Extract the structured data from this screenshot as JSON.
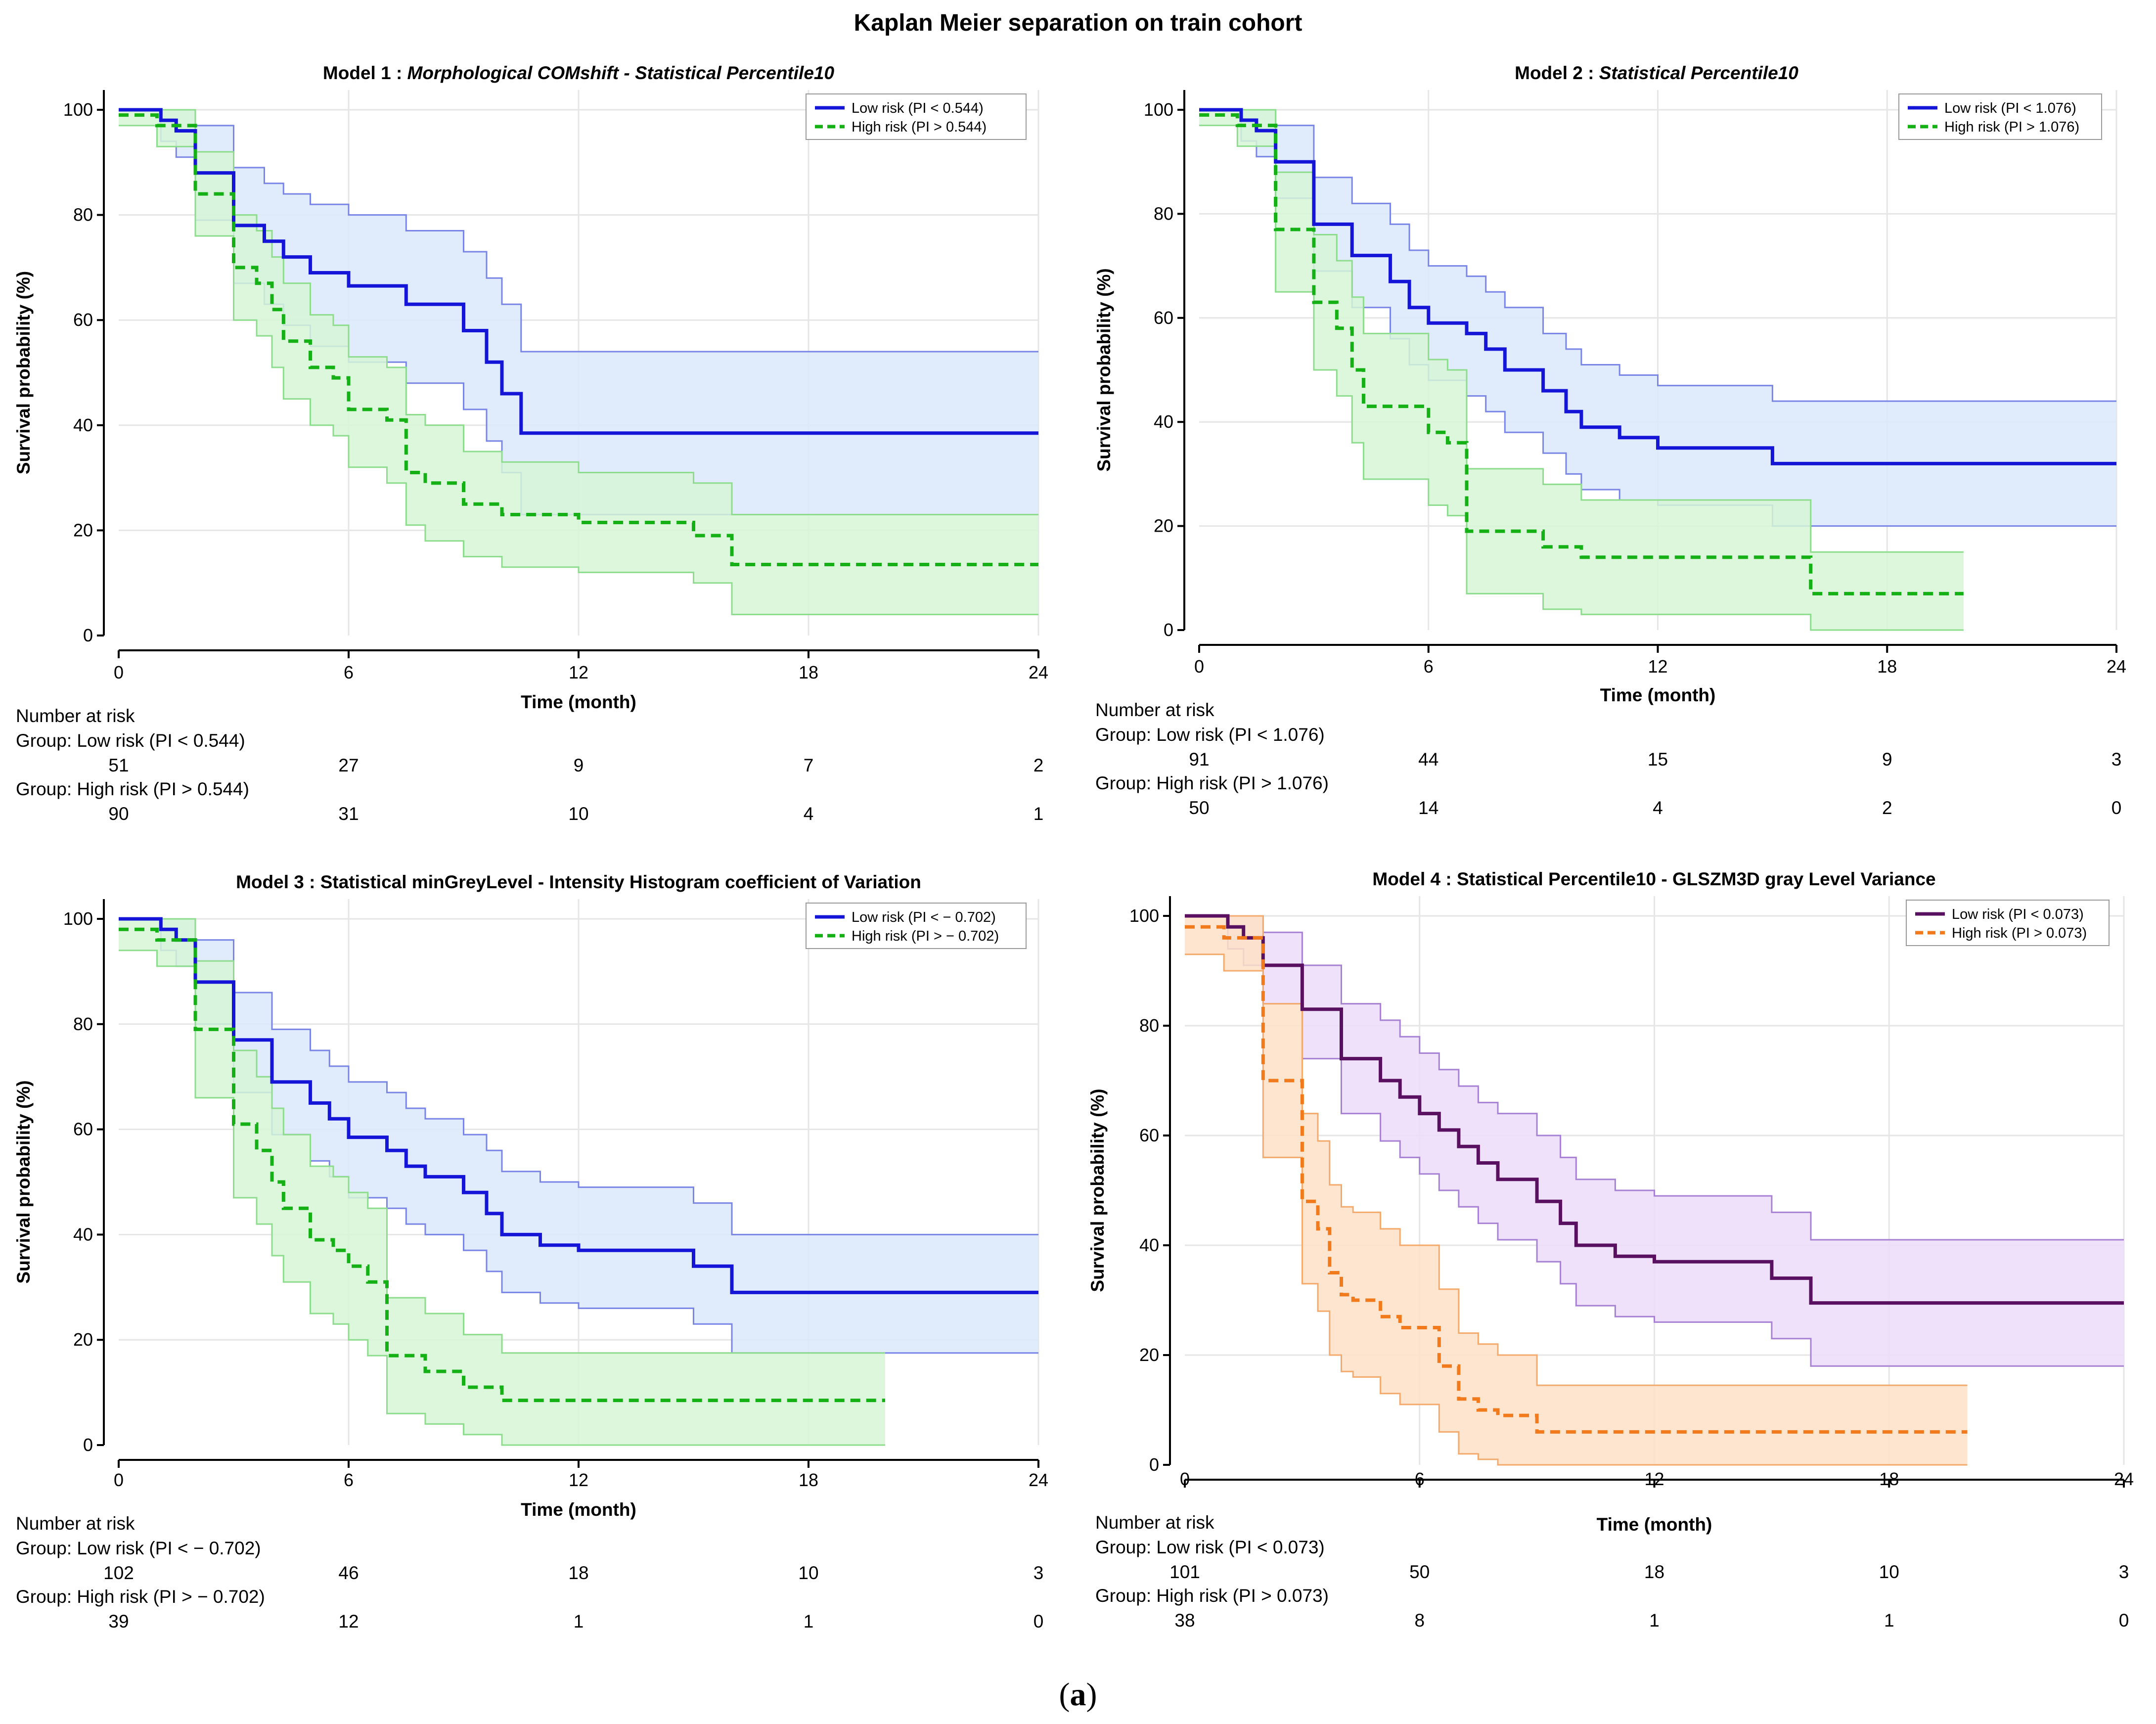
{
  "figure": {
    "title": "Kaplan Meier separation on train cohort",
    "caption_open": "(",
    "caption_letter": "a",
    "caption_close": ")"
  },
  "colors": {
    "blue": "#1515d8",
    "blue_band": "#dbe8fb",
    "blue_band_edge": "#7a86e6",
    "green": "#15b015",
    "green_band": "#d6f6d6",
    "green_band_edge": "#8edc8e",
    "purple": "#5a1060",
    "purple_band": "#ecdcf8",
    "purple_band_edge": "#a781d4",
    "orange": "#f07a1c",
    "orange_band": "#fde0c7",
    "orange_band_edge": "#f4aa6c",
    "axis": "#000000",
    "grid": "#e6e6e6"
  },
  "chart_data": [
    {
      "type": "line",
      "subtype": "kaplan-meier",
      "title_prefix": "Model 1 : ",
      "title_main": "Morphological COMshift - Statistical Percentile10",
      "title_italic": true,
      "xlabel": "Time (month)",
      "ylabel": "Survival probability (%)",
      "xlim": [
        0,
        24
      ],
      "ylim": [
        0,
        100
      ],
      "xticks": [
        0,
        6,
        12,
        18,
        24
      ],
      "yticks": [
        0,
        20,
        40,
        60,
        80,
        100
      ],
      "grid": true,
      "legend_position": "top-right",
      "series": [
        {
          "name": "Low risk (PI < 0.544)",
          "color": "blue",
          "dash": false,
          "x": [
            0,
            1.1,
            1.5,
            2,
            3,
            3.8,
            4.3,
            5,
            6,
            7.5,
            9,
            9.6,
            10,
            10.5,
            24
          ],
          "y": [
            100,
            98,
            96,
            88,
            78,
            75,
            72,
            69,
            66.5,
            63,
            58,
            52,
            46,
            38.5,
            38.5
          ],
          "ci_upper": [
            100,
            100,
            100,
            97,
            89,
            86,
            84,
            82,
            80,
            77,
            73,
            68,
            63,
            54,
            54
          ],
          "ci_lower": [
            100,
            94,
            91,
            79,
            67,
            63,
            59,
            55,
            52,
            48,
            43,
            37,
            31,
            23,
            23
          ]
        },
        {
          "name": "High risk (PI > 0.544)",
          "color": "green",
          "dash": true,
          "x": [
            0,
            1,
            2,
            3,
            3.6,
            4,
            4.3,
            5,
            5.6,
            6,
            7,
            7.5,
            8,
            9,
            10,
            12,
            15,
            16,
            24
          ],
          "y": [
            99,
            97,
            84,
            70,
            67,
            62,
            56,
            51,
            49,
            43,
            41,
            31,
            29,
            25,
            23,
            21.5,
            19,
            13.5,
            13.5
          ],
          "ci_upper": [
            100,
            100,
            92,
            80,
            77,
            72,
            67,
            61,
            59,
            53,
            51,
            42,
            40,
            35,
            33,
            31,
            29,
            23,
            23
          ],
          "ci_lower": [
            97,
            93,
            76,
            60,
            57,
            51,
            45,
            40,
            38,
            32,
            29,
            21,
            18,
            15,
            13,
            12,
            10,
            4,
            4
          ]
        }
      ],
      "risk_table": {
        "header": "Number at risk",
        "times": [
          0,
          6,
          12,
          18,
          24
        ],
        "groups": [
          {
            "label": "Group: Low risk (PI < 0.544)",
            "counts": [
              "51",
              "27",
              "9",
              "7",
              "2"
            ]
          },
          {
            "label": "Group: High risk (PI > 0.544)",
            "counts": [
              "90",
              "31",
              "10",
              "4",
              "1"
            ]
          }
        ]
      }
    },
    {
      "type": "line",
      "subtype": "kaplan-meier",
      "title_prefix": "Model 2 : ",
      "title_main": "Statistical Percentile10",
      "title_italic": true,
      "xlabel": "Time (month)",
      "ylabel": "Survival probability (%)",
      "xlim": [
        0,
        24
      ],
      "ylim": [
        0,
        100
      ],
      "xticks": [
        0,
        6,
        12,
        18,
        24
      ],
      "yticks": [
        0,
        20,
        40,
        60,
        80,
        100
      ],
      "grid": true,
      "legend_position": "top-right",
      "series": [
        {
          "name": "Low risk (PI < 1.076)",
          "color": "blue",
          "dash": false,
          "x": [
            0,
            1.1,
            1.5,
            2,
            3,
            4,
            5,
            5.5,
            6,
            7,
            7.5,
            8,
            9,
            9.6,
            10,
            11,
            12,
            15,
            24
          ],
          "y": [
            100,
            98,
            96,
            90,
            78,
            72,
            67,
            62,
            59,
            57,
            54,
            50,
            46,
            42,
            39,
            37,
            35,
            32,
            32
          ],
          "ci_upper": [
            100,
            100,
            100,
            97,
            87,
            82,
            78,
            73,
            70,
            68,
            65,
            62,
            57,
            54,
            51,
            49,
            47,
            44,
            44
          ],
          "ci_lower": [
            100,
            94,
            91,
            83,
            69,
            62,
            56,
            51,
            48,
            45,
            42,
            38,
            34,
            30,
            27,
            25,
            24,
            20,
            20
          ]
        },
        {
          "name": "High risk (PI > 1.076)",
          "color": "green",
          "dash": true,
          "x": [
            0,
            1,
            2,
            3,
            3.6,
            4,
            4.3,
            5,
            6,
            6.5,
            7,
            8,
            9,
            10,
            12,
            16,
            20
          ],
          "y": [
            99,
            97,
            77,
            63,
            58,
            50,
            43,
            43,
            38,
            36,
            19,
            19,
            16,
            14,
            14,
            7,
            7
          ],
          "ci_upper": [
            100,
            100,
            88,
            76,
            71,
            64,
            57,
            57,
            52,
            50,
            31,
            31,
            28,
            25,
            25,
            15,
            15
          ],
          "ci_lower": [
            97,
            93,
            65,
            50,
            45,
            36,
            29,
            29,
            24,
            22,
            7,
            7,
            4,
            3,
            3,
            0,
            0
          ]
        }
      ],
      "risk_table": {
        "header": "Number at risk",
        "times": [
          0,
          6,
          12,
          18,
          24
        ],
        "groups": [
          {
            "label": "Group: Low risk (PI < 1.076)",
            "counts": [
              "91",
              "44",
              "15",
              "9",
              "3"
            ]
          },
          {
            "label": "Group: High risk (PI > 1.076)",
            "counts": [
              "50",
              "14",
              "4",
              "2",
              "0"
            ]
          }
        ]
      }
    },
    {
      "type": "line",
      "subtype": "kaplan-meier",
      "title_prefix": "Model 3 : ",
      "title_main": "Statistical minGreyLevel - Intensity Histogram coefficient of Variation",
      "title_italic": false,
      "xlabel": "Time (month)",
      "ylabel": "Survival probability (%)",
      "xlim": [
        0,
        24
      ],
      "ylim": [
        0,
        100
      ],
      "xticks": [
        0,
        6,
        12,
        18,
        24
      ],
      "yticks": [
        0,
        20,
        40,
        60,
        80,
        100
      ],
      "grid": true,
      "legend_position": "top-right",
      "series": [
        {
          "name": "Low risk (PI < − 0.702)",
          "color": "blue",
          "dash": false,
          "x": [
            0,
            1.1,
            1.5,
            2,
            3,
            4,
            5,
            5.5,
            6,
            7,
            7.5,
            8,
            9,
            9.6,
            10,
            11,
            12,
            15,
            16,
            24
          ],
          "y": [
            100,
            98,
            96,
            88,
            77,
            69,
            65,
            62,
            58.5,
            56,
            53,
            51,
            48,
            44,
            40,
            38,
            37,
            34,
            29,
            29
          ],
          "ci_upper": [
            100,
            100,
            100,
            96,
            86,
            79,
            75,
            72,
            69,
            67,
            64,
            62,
            59,
            56,
            52,
            50,
            49,
            46,
            40,
            40
          ],
          "ci_lower": [
            100,
            94,
            91,
            80,
            67,
            59,
            54,
            51,
            47,
            45,
            42,
            40,
            37,
            33,
            29,
            27,
            26,
            23,
            17.5,
            17.5
          ]
        },
        {
          "name": "High risk (PI > − 0.702)",
          "color": "green",
          "dash": true,
          "x": [
            0,
            1,
            2,
            3,
            3.6,
            4,
            4.3,
            5,
            5.6,
            6,
            6.5,
            7,
            8,
            9,
            10,
            20
          ],
          "y": [
            98,
            96,
            79,
            61,
            56,
            50,
            45,
            39,
            37,
            34,
            31,
            17,
            14,
            11,
            8.5,
            8.5
          ],
          "ci_upper": [
            100,
            100,
            92,
            75,
            70,
            64,
            59,
            53,
            51,
            48,
            45,
            28,
            25,
            21,
            17.5,
            17.5
          ],
          "ci_lower": [
            94,
            91,
            66,
            47,
            42,
            36,
            31,
            25,
            23,
            20,
            17,
            6,
            4,
            2,
            0,
            0
          ]
        }
      ],
      "risk_table": {
        "header": "Number at risk",
        "times": [
          0,
          6,
          12,
          18,
          24
        ],
        "groups": [
          {
            "label": "Group: Low risk (PI < − 0.702)",
            "counts": [
              "102",
              "46",
              "18",
              "10",
              "3"
            ]
          },
          {
            "label": "Group: High risk (PI > − 0.702)",
            "counts": [
              "39",
              "12",
              "1",
              "1",
              "0"
            ]
          }
        ]
      }
    },
    {
      "type": "line",
      "subtype": "kaplan-meier",
      "title_prefix": "Model 4 : ",
      "title_main": "Statistical Percentile10 - GLSZM3D gray Level Variance",
      "title_italic": false,
      "xlabel": "Time (month)",
      "ylabel": "Survival probability (%)",
      "xlim": [
        0,
        24
      ],
      "ylim": [
        0,
        100
      ],
      "xticks": [
        0,
        6,
        12,
        18,
        24
      ],
      "yticks": [
        0,
        20,
        40,
        60,
        80,
        100
      ],
      "grid": true,
      "legend_position": "top-right",
      "series": [
        {
          "name": "Low risk (PI < 0.073)",
          "color": "purple",
          "dash": false,
          "x": [
            0,
            1.1,
            1.5,
            2,
            3,
            4,
            5,
            5.5,
            6,
            6.5,
            7,
            7.5,
            8,
            9,
            9.6,
            10,
            11,
            12,
            15,
            16,
            24
          ],
          "y": [
            100,
            98,
            96,
            91,
            83,
            74,
            70,
            67,
            64,
            61,
            58,
            55,
            52,
            48,
            44,
            40,
            38,
            37,
            34,
            29.5,
            29.5
          ],
          "ci_upper": [
            100,
            100,
            100,
            97,
            91,
            84,
            81,
            78,
            75,
            72,
            69,
            66,
            64,
            60,
            56,
            52,
            50,
            49,
            46,
            41,
            41
          ],
          "ci_lower": [
            100,
            94,
            91,
            84,
            74,
            64,
            59,
            56,
            53,
            50,
            47,
            44,
            41,
            37,
            33,
            29,
            27,
            26,
            23,
            18,
            18
          ]
        },
        {
          "name": "High risk (PI > 0.073)",
          "color": "orange",
          "dash": true,
          "x": [
            0,
            1,
            2,
            3,
            3.4,
            3.7,
            4,
            4.3,
            5,
            5.5,
            6,
            6.5,
            7,
            7.5,
            8,
            9,
            10,
            20
          ],
          "y": [
            98,
            96,
            70,
            48,
            43,
            35,
            31,
            30,
            27,
            25,
            25,
            18,
            12,
            10,
            9,
            6,
            6,
            6
          ],
          "ci_upper": [
            100,
            100,
            84,
            64,
            59,
            51,
            47,
            46,
            43,
            40,
            40,
            32,
            24,
            22,
            20,
            14.5,
            14.5,
            14.5
          ],
          "ci_lower": [
            93,
            90,
            56,
            33,
            28,
            20,
            17,
            16,
            13,
            11,
            11,
            6,
            2,
            1,
            0,
            0,
            0,
            0
          ]
        }
      ],
      "risk_table": {
        "header": "Number at risk",
        "times": [
          0,
          6,
          12,
          18,
          24
        ],
        "groups": [
          {
            "label": "Group: Low risk (PI < 0.073)",
            "counts": [
              "101",
              "50",
              "18",
              "10",
              "3"
            ]
          },
          {
            "label": "Group: High risk (PI > 0.073)",
            "counts": [
              "38",
              "8",
              "1",
              "1",
              "0"
            ]
          }
        ]
      }
    }
  ]
}
